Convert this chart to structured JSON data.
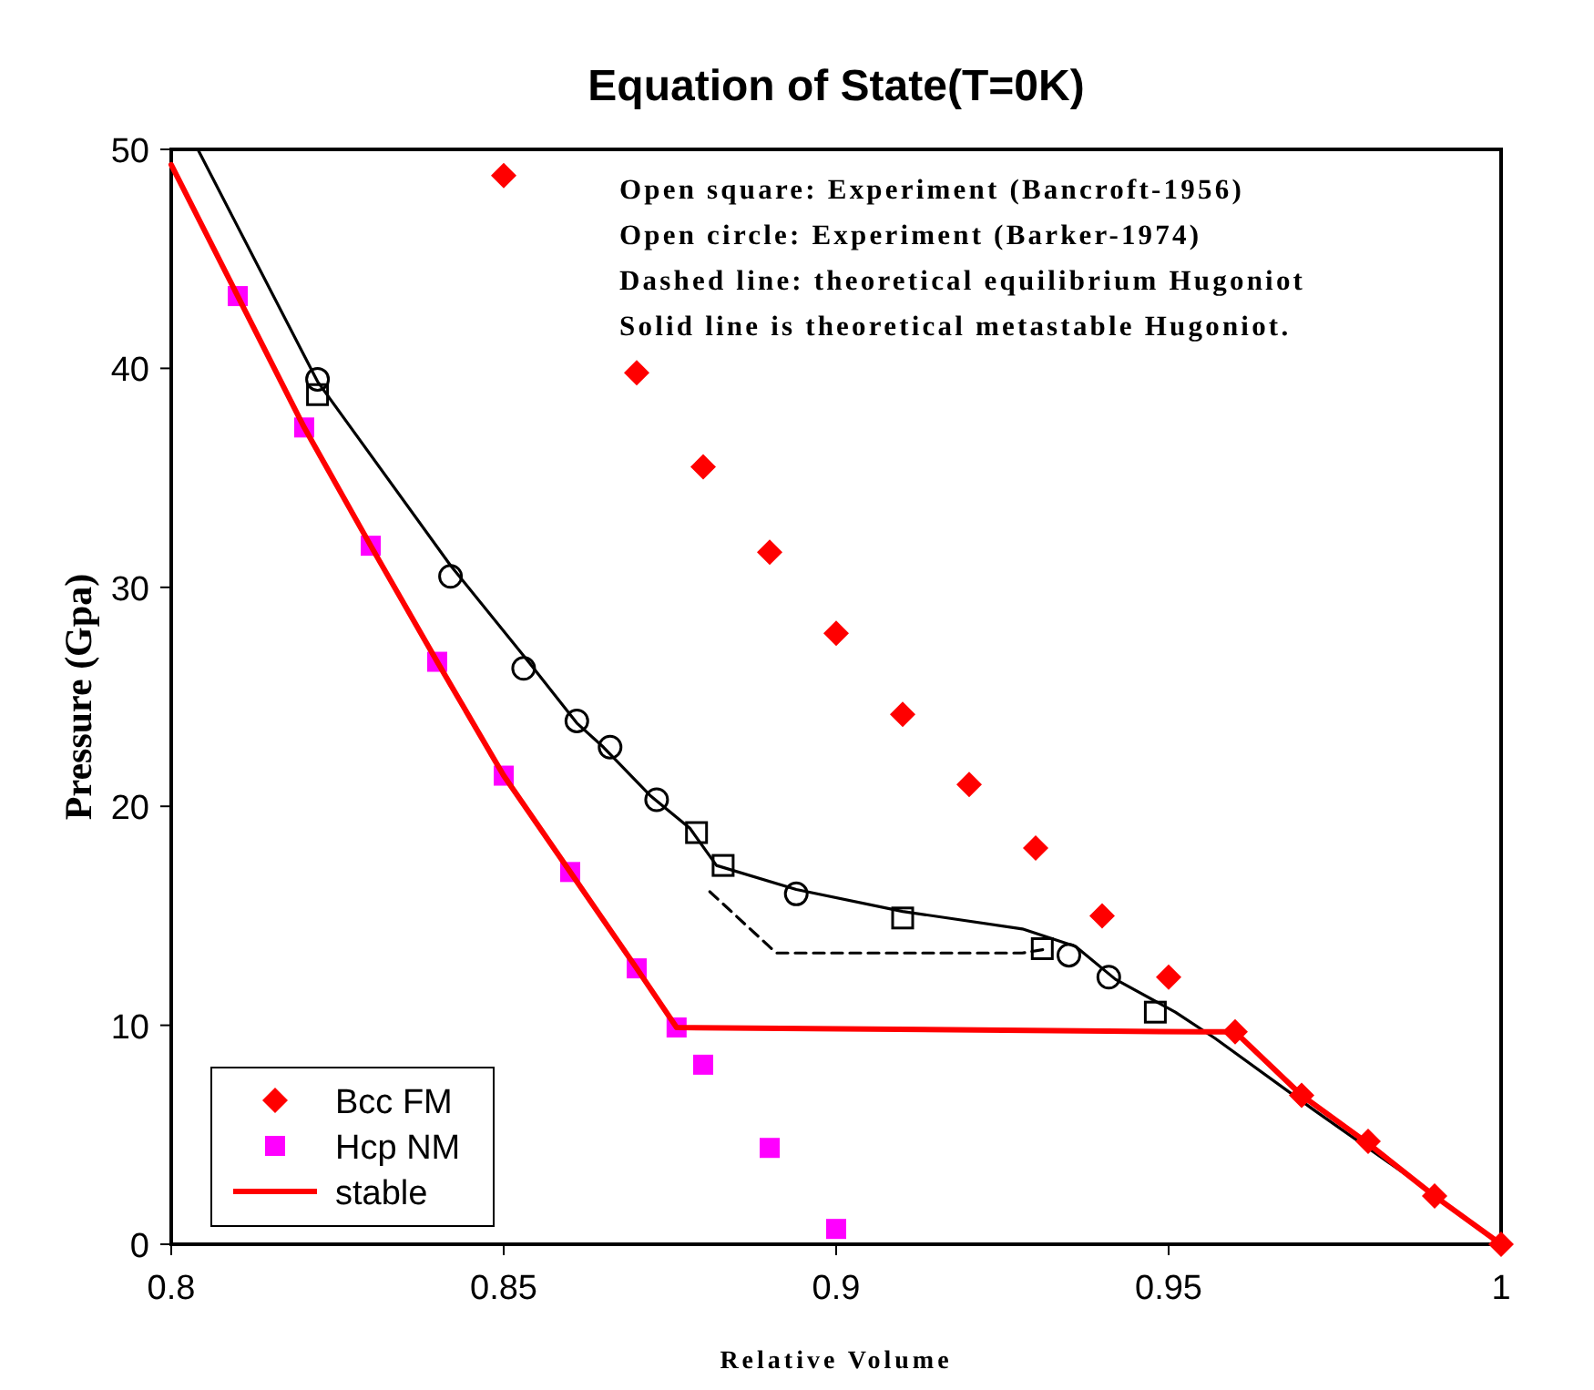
{
  "chart_data": {
    "type": "scatter",
    "title": "Equation of State(T=0K)",
    "xlabel": "Relative Volume",
    "ylabel": "Pressure (Gpa)",
    "xlim": [
      0.8,
      1
    ],
    "xticks": [
      0.8,
      0.85,
      0.9,
      0.95,
      1
    ],
    "ylim": [
      0,
      50
    ],
    "yticks": [
      0,
      10,
      20,
      30,
      40,
      50
    ],
    "grid": false,
    "legend": "bottom left",
    "annotations": [
      "Open square: Experiment (Bancroft-1956)",
      "Open circle: Experiment (Barker-1974)",
      "Dashed line: theoretical equilibrium Hugoniot",
      "Solid line is theoretical metastable Hugoniot."
    ],
    "series": [
      {
        "type": "line",
        "color": "#000000",
        "marker": "none",
        "line_style": "solid",
        "x": [
          0.804,
          0.822,
          0.842,
          0.854,
          0.861,
          0.865,
          0.872,
          0.878,
          0.882,
          0.894,
          0.91,
          0.928,
          0.936,
          0.942,
          0.951,
          0.957,
          0.972,
          0.987,
          1.0
        ],
        "values": [
          50,
          39.4,
          31.0,
          26.5,
          23.8,
          22.7,
          20.5,
          19.0,
          17.3,
          16.2,
          15.2,
          14.4,
          13.6,
          12.1,
          10.6,
          9.4,
          6.1,
          2.9,
          0
        ]
      },
      {
        "type": "line",
        "color": "#000000",
        "marker": "none",
        "line_style": "dashed",
        "x": [
          0.881,
          0.891,
          0.928,
          0.932
        ],
        "values": [
          16.1,
          13.3,
          13.3,
          13.5
        ]
      },
      {
        "color": "#000000",
        "marker": "circle",
        "x": [
          0.822,
          0.842,
          0.853,
          0.861,
          0.866,
          0.873,
          0.894,
          0.935,
          0.941
        ],
        "values": [
          39.5,
          30.5,
          26.3,
          23.9,
          22.7,
          20.3,
          16.0,
          13.2,
          12.2
        ]
      },
      {
        "color": "#000000",
        "marker": "square",
        "x": [
          0.822,
          0.879,
          0.883,
          0.91,
          0.931,
          0.948
        ],
        "values": [
          38.8,
          18.8,
          17.3,
          14.9,
          13.5,
          10.6
        ]
      },
      {
        "name": "Bcc FM",
        "color": "#ff0000",
        "marker": "diamond",
        "x": [
          0.85,
          0.87,
          0.88,
          0.89,
          0.9,
          0.91,
          0.92,
          0.93,
          0.94,
          0.95,
          0.96,
          0.97,
          0.98,
          0.99,
          1.0
        ],
        "values": [
          48.8,
          39.8,
          35.5,
          31.6,
          27.9,
          24.2,
          21.0,
          18.1,
          15.0,
          12.2,
          9.7,
          6.8,
          4.7,
          2.2,
          0
        ]
      },
      {
        "name": "Hcp NM",
        "color": "#ff00ff",
        "marker": "square",
        "x": [
          0.81,
          0.82,
          0.83,
          0.84,
          0.85,
          0.86,
          0.87,
          0.876,
          0.88,
          0.89,
          0.9
        ],
        "values": [
          43.3,
          37.3,
          31.9,
          26.6,
          21.4,
          17.0,
          12.6,
          9.9,
          8.2,
          4.4,
          0.7
        ]
      },
      {
        "type": "line",
        "name": "stable",
        "color": "#ff0000",
        "marker": "none",
        "line_style": "solid",
        "x": [
          0.8,
          0.81,
          0.82,
          0.83,
          0.84,
          0.85,
          0.86,
          0.87,
          0.876,
          0.955,
          0.96,
          0.97,
          0.98,
          0.99,
          1.0
        ],
        "values": [
          49.3,
          43.3,
          37.3,
          31.9,
          26.6,
          21.4,
          17.0,
          12.6,
          9.9,
          9.7,
          9.7,
          6.8,
          4.6,
          2.2,
          0
        ]
      }
    ]
  }
}
